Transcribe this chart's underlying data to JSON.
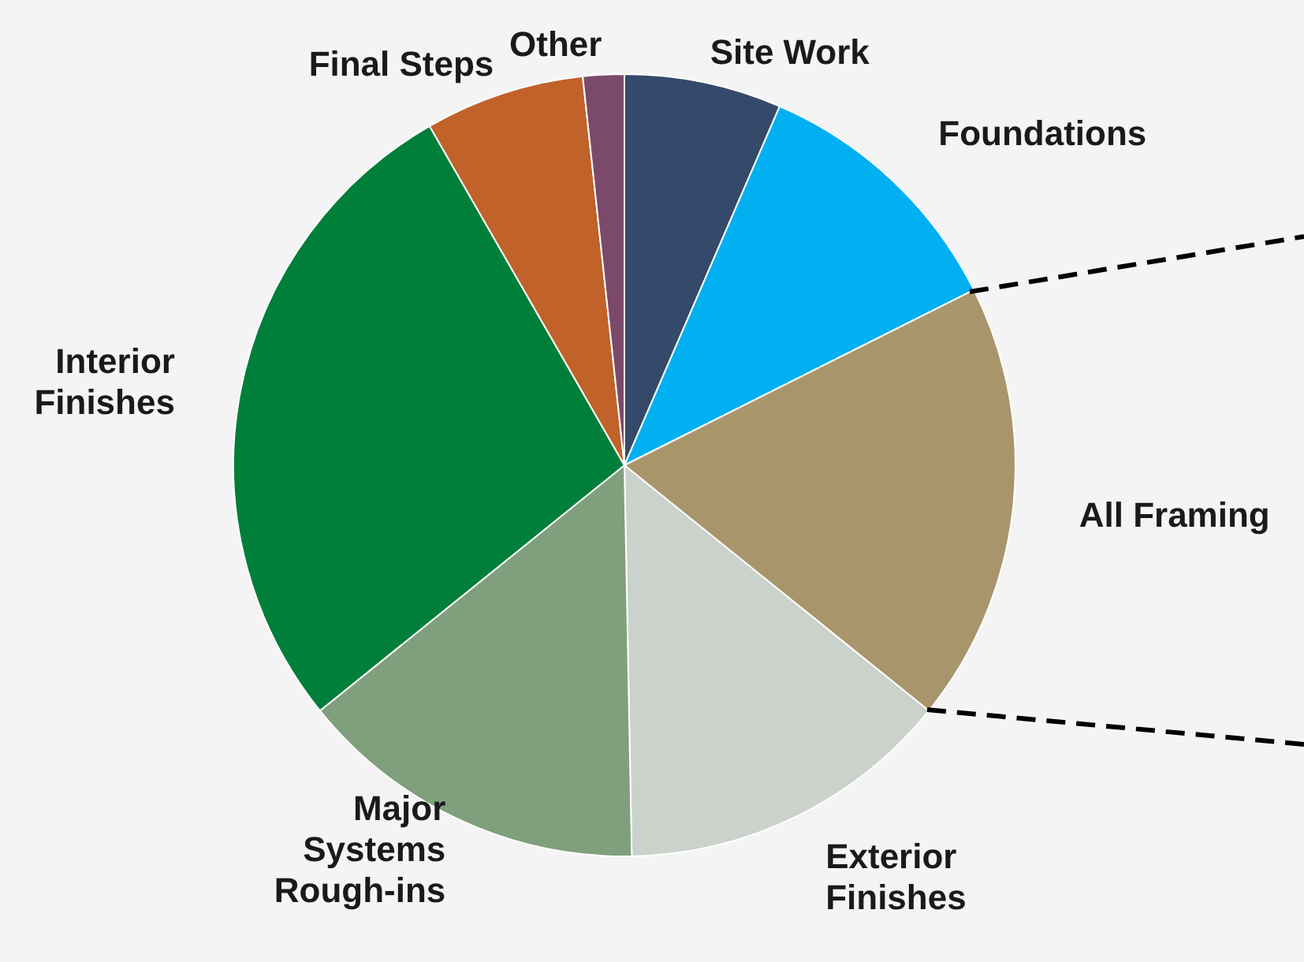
{
  "chart_data": {
    "type": "pie",
    "categories": [
      "Site Work",
      "Foundations",
      "All Framing",
      "Exterior Finishes",
      "Major Systems Rough-ins",
      "Interior Finishes",
      "Final Steps",
      "Other"
    ],
    "values": [
      6.5,
      11.1,
      18.2,
      13.9,
      14.5,
      27.5,
      6.6,
      1.7
    ],
    "colors": [
      "#354a6a",
      "#00b0f0",
      "#a8956b",
      "#cad2cb",
      "#809f7c",
      "#007f3a",
      "#c0622a",
      "#7b4a6a"
    ]
  }
}
